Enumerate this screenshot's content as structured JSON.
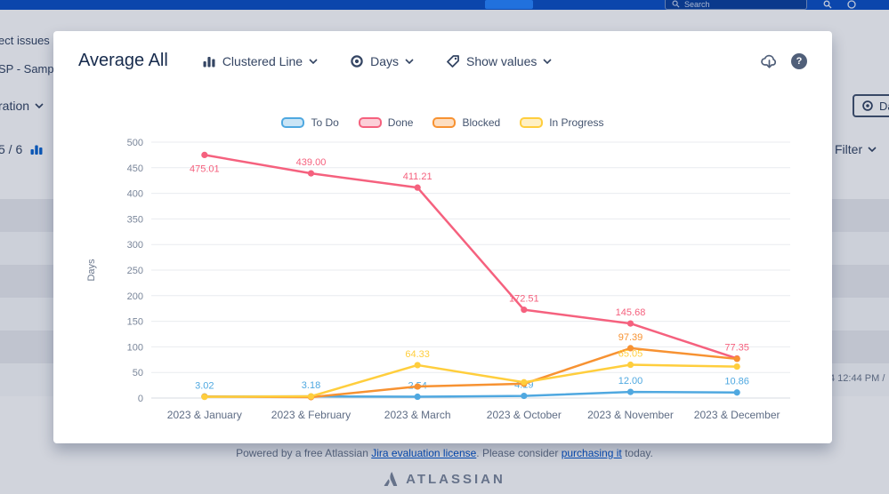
{
  "colors": {
    "accent": "#0052CC",
    "navbar": "#0B50C4",
    "link": "#0052CC"
  },
  "navbar": {
    "search_placeholder": "Search"
  },
  "background_page": {
    "fragment_line1": "ect issues u",
    "fragment_line2": "SP - Sampl",
    "fragment_dropdown": "ration",
    "fragment_count": "5 / 6",
    "date_pill_label": "Da",
    "filter_label": "Filter",
    "timestamp_fragment": "4 12:44 PM /"
  },
  "modal": {
    "title": "Average All",
    "chart_type_dropdown": "Clustered Line",
    "unit_dropdown": "Days",
    "values_dropdown": "Show values",
    "help_glyph": "?"
  },
  "chart_data": {
    "type": "line",
    "title": "Average All",
    "xlabel": "",
    "ylabel": "Days",
    "ylim": [
      0,
      500
    ],
    "ytick_step": 50,
    "grid": true,
    "legend_position": "top",
    "categories": [
      "2023 & January",
      "2023 & February",
      "2023 & March",
      "2023 & October",
      "2023 & November",
      "2023 & December"
    ],
    "series": [
      {
        "name": "To Do",
        "color": "#4FA8E0",
        "values": [
          3.02,
          3.18,
          2.54,
          4.19,
          12.0,
          10.86
        ],
        "point_labels": [
          "3.02",
          "3.18",
          "2.54",
          "4.19",
          "12.00",
          "10.86"
        ]
      },
      {
        "name": "Done",
        "color": "#F5617E",
        "values": [
          475.01,
          439.0,
          411.21,
          172.51,
          145.68,
          77.35
        ],
        "point_labels": [
          "475.01",
          "439.00",
          "411.21",
          "172.51",
          "145.68",
          "77.35"
        ]
      },
      {
        "name": "Blocked",
        "color": "#F79232",
        "values": [
          2.9,
          1.8,
          22.5,
          27.9,
          97.39,
          76.5
        ],
        "point_labels": [
          null,
          null,
          null,
          null,
          "97.39",
          null
        ]
      },
      {
        "name": "In Progress",
        "color": "#FFCE3D",
        "values": [
          2.3,
          3.4,
          64.33,
          30.8,
          65.05,
          61.5
        ],
        "point_labels": [
          null,
          null,
          "64.33",
          null,
          "65.05",
          null
        ]
      }
    ]
  },
  "footer": {
    "powered_prefix": "Powered by a free Atlassian ",
    "license_link": "Jira evaluation license",
    "middle": ". Please consider ",
    "purchase_link": "purchasing it",
    "suffix": " today.",
    "brand": "ATLASSIAN"
  }
}
